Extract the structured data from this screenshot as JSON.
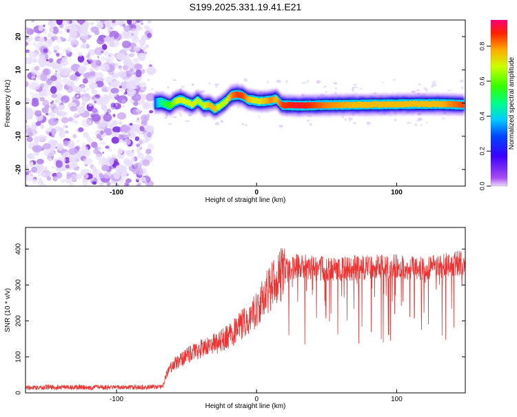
{
  "title": "S199.2025.331.19.41.E21",
  "chart_data": [
    {
      "type": "heatmap",
      "title": "S199.2025.331.19.41.E21",
      "xlabel": "Height of straight line (km)",
      "ylabel": "Frequency (Hz)",
      "xlim": [
        -165,
        149
      ],
      "ylim": [
        -25,
        25
      ],
      "xticks": [
        -100,
        0,
        100
      ],
      "yticks": [
        -20,
        -10,
        0,
        10,
        20
      ],
      "noise_region": {
        "x_from": -165,
        "x_to": -75,
        "amplitude_range": [
          0.0,
          0.2
        ]
      },
      "ridge": {
        "description": "dominant frequency track (center frequency in Hz vs height)",
        "x": [
          -73,
          -68,
          -62,
          -58,
          -54,
          -50,
          -46,
          -42,
          -38,
          -34,
          -30,
          -26,
          -22,
          -18,
          -14,
          -10,
          -6,
          -2,
          2,
          6,
          10,
          14,
          18,
          30,
          50,
          70,
          90,
          110,
          130,
          148
        ],
        "y": [
          0.0,
          0.2,
          -0.8,
          0.5,
          1.0,
          0.2,
          -0.5,
          0.8,
          -0.8,
          -0.5,
          -1.8,
          -0.8,
          0.5,
          2.3,
          2.5,
          2.2,
          1.0,
          0.8,
          0.5,
          0.6,
          0.8,
          1.2,
          -0.6,
          -0.8,
          -0.6,
          -0.5,
          -0.4,
          -0.3,
          -0.3,
          -0.5
        ],
        "amplitude": [
          0.3,
          0.5,
          0.6,
          0.7,
          0.75,
          0.7,
          0.75,
          0.7,
          0.7,
          0.8,
          0.8,
          0.7,
          0.7,
          0.85,
          0.9,
          0.9,
          0.8,
          0.75,
          0.75,
          0.8,
          0.85,
          0.8,
          0.9,
          0.95,
          0.85,
          0.8,
          0.8,
          0.8,
          0.8,
          0.9
        ]
      },
      "colorbar": {
        "label": "Normalized spectral amplitude",
        "range": [
          0.0,
          0.95
        ],
        "ticks": [
          0.0,
          0.2,
          0.4,
          0.6,
          0.8
        ]
      }
    },
    {
      "type": "line",
      "xlabel": "Height of straight line (km)",
      "ylabel": "SNR (10 * v/v)",
      "xlim": [
        -165,
        149
      ],
      "ylim": [
        0,
        460
      ],
      "xticks": [
        -100,
        0,
        100
      ],
      "yticks": [
        0,
        100,
        200,
        300,
        400
      ],
      "series": [
        {
          "name": "SNR",
          "color": "#ee3333",
          "x": [
            -165,
            -140,
            -120,
            -100,
            -80,
            -67,
            -64,
            -60,
            -55,
            -50,
            -45,
            -40,
            -35,
            -30,
            -25,
            -20,
            -15,
            -10,
            -5,
            0,
            5,
            10,
            15,
            20,
            25,
            30,
            40,
            50,
            60,
            70,
            80,
            90,
            100,
            110,
            120,
            130,
            140,
            149
          ],
          "values": [
            15,
            16,
            15,
            15,
            16,
            18,
            55,
            80,
            90,
            105,
            115,
            125,
            130,
            140,
            150,
            160,
            175,
            195,
            215,
            240,
            270,
            300,
            325,
            345,
            355,
            360,
            355,
            350,
            352,
            355,
            355,
            358,
            360,
            355,
            355,
            360,
            365,
            370
          ]
        }
      ]
    }
  ]
}
